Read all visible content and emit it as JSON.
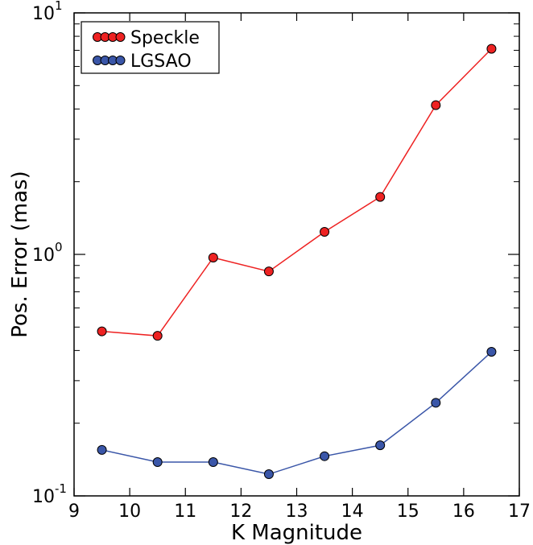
{
  "chart_data": {
    "type": "line",
    "title": "",
    "xlabel": "K Magnitude",
    "ylabel": "Pos. Error (mas)",
    "xlim": [
      9,
      17
    ],
    "ylim": [
      0.1,
      10
    ],
    "yscale": "log",
    "x_ticks": [
      "9",
      "10",
      "11",
      "12",
      "13",
      "14",
      "15",
      "16",
      "17"
    ],
    "y_ticks": [
      {
        "base": "10",
        "exp": "-1",
        "value": 0.1
      },
      {
        "base": "10",
        "exp": "0",
        "value": 1
      },
      {
        "base": "10",
        "exp": "1",
        "value": 10
      }
    ],
    "grid": false,
    "legend_position": "top-left",
    "x": [
      9.5,
      10.5,
      11.5,
      12.5,
      13.5,
      14.5,
      15.5,
      16.5
    ],
    "series": [
      {
        "name": "Speckle",
        "color": "#ee2222",
        "marker_color": "#ee2222",
        "values": [
          0.48,
          0.46,
          0.97,
          0.85,
          1.24,
          1.73,
          4.15,
          7.1
        ]
      },
      {
        "name": "LGSAO",
        "color": "#3a56a8",
        "marker_color": "#3a56a8",
        "values": [
          0.155,
          0.138,
          0.138,
          0.123,
          0.146,
          0.162,
          0.243,
          0.395
        ]
      }
    ]
  }
}
